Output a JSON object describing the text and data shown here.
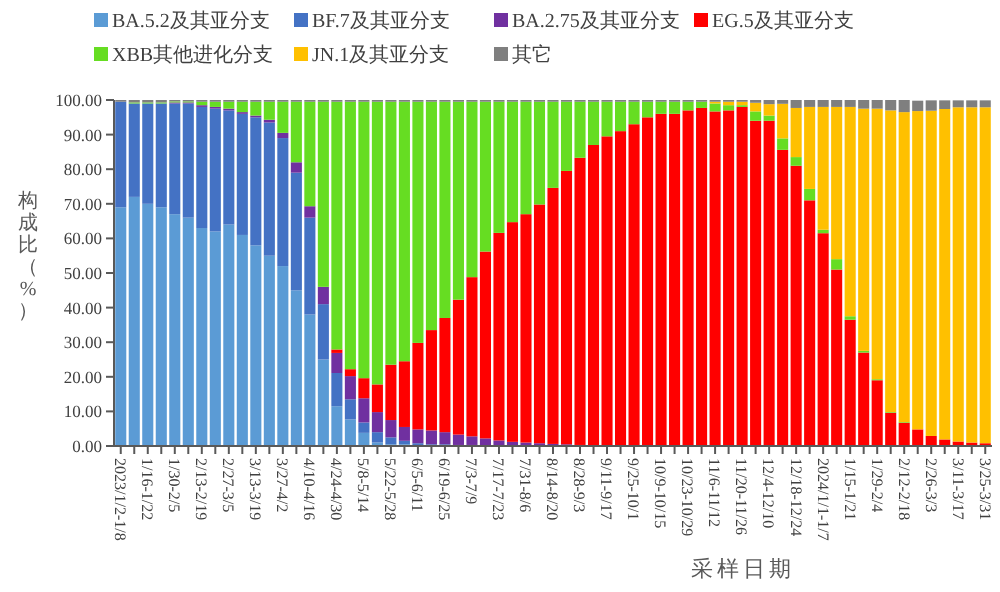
{
  "chart_data": {
    "type": "bar",
    "stacked": true,
    "xlabel": "采样日期",
    "ylabel": "构成比（%）",
    "legend": "top",
    "grid": false,
    "categories": [
      "2023/1/2-1/8",
      null,
      "1/16-1/22",
      null,
      "1/30-2/5",
      null,
      "2/13-2/19",
      null,
      "2/27-3/5",
      null,
      "3/13-3/19",
      null,
      "3/27-4/2",
      null,
      "4/10-4/16",
      null,
      "4/24-4/30",
      null,
      "5/8-5/14",
      null,
      "5/22-5/28",
      null,
      "6/5-6/11",
      null,
      "6/19-6/25",
      null,
      "7/3-7/9",
      null,
      "7/17-7/23",
      null,
      "7/31-8/6",
      null,
      "8/14-8/20",
      null,
      "8/28-9/3",
      null,
      "9/11-9/17",
      null,
      "9/25-10/1",
      null,
      "10/9-10/15",
      null,
      "10/23-10/29",
      null,
      "11/6-11/12",
      null,
      "11/20-11/26",
      null,
      "12/4-12/10",
      null,
      "12/18-12/24",
      null,
      "2024/1/1-1/7",
      null,
      "1/15-1/21",
      null,
      "1/29-2/4",
      null,
      "2/12-2/18",
      null,
      "2/26-3/3",
      null,
      "3/11-3/17",
      null,
      "3/25-3/31"
    ],
    "ylim": [
      0,
      100
    ],
    "yticks": [
      {
        "value": 0,
        "label": "0.00"
      },
      {
        "value": 10,
        "label": "10.00"
      },
      {
        "value": 20,
        "label": "20.00"
      },
      {
        "value": 30,
        "label": "30.00"
      },
      {
        "value": 40,
        "label": "40.00"
      },
      {
        "value": 50,
        "label": "50.00"
      },
      {
        "value": 60,
        "label": "60.00"
      },
      {
        "value": 70,
        "label": "70.00"
      },
      {
        "value": 80,
        "label": "80.00"
      },
      {
        "value": 90,
        "label": "90.00"
      },
      {
        "value": 100,
        "label": "100.00"
      }
    ],
    "series": [
      {
        "name": "BA.5.2及其亚分支",
        "color": "#5b9bd5",
        "values": [
          69,
          72,
          70,
          69,
          67,
          66,
          63,
          62,
          64,
          61,
          58,
          55,
          52,
          45,
          38,
          25,
          11.5,
          7.7,
          3.8,
          1,
          0.5,
          0.5,
          0.3,
          0.2,
          0.2,
          0.1,
          0.1,
          0.1,
          0,
          0,
          0,
          0,
          0,
          0,
          0,
          0,
          0,
          0,
          0,
          0,
          0,
          0,
          0,
          0,
          0,
          0,
          0,
          0,
          0,
          0,
          0,
          0,
          0,
          0,
          0,
          0,
          0,
          0,
          0,
          0,
          0,
          0,
          0,
          0,
          0
        ]
      },
      {
        "name": "BF.7及其亚分支",
        "color": "#4472c4",
        "values": [
          30.5,
          27,
          29,
          30,
          32,
          33,
          35,
          35.5,
          33,
          35,
          37,
          38.5,
          37,
          34,
          28,
          16,
          9.6,
          5.8,
          3,
          3,
          2,
          1,
          0.5,
          0.3,
          0.3,
          0.2,
          0.2,
          0.1,
          0.1,
          0,
          0,
          0,
          0,
          0,
          0,
          0,
          0,
          0,
          0,
          0,
          0,
          0,
          0,
          0,
          0,
          0,
          0,
          0,
          0,
          0,
          0,
          0,
          0,
          0,
          0,
          0,
          0,
          0,
          0,
          0,
          0,
          0,
          0,
          0,
          0
        ]
      },
      {
        "name": "BA.2.75及其亚分支",
        "color": "#7030a0",
        "values": [
          0,
          0,
          0,
          0,
          0.3,
          0.3,
          0.5,
          0.5,
          0.5,
          0.5,
          0.5,
          0.8,
          1.5,
          3,
          3.3,
          5,
          5.8,
          6.7,
          7,
          5.8,
          5,
          4,
          4,
          4,
          3.5,
          3,
          2.5,
          2,
          1.5,
          1.2,
          1,
          0.8,
          0.6,
          0.5,
          0.3,
          0,
          0,
          0,
          0,
          0,
          0,
          0,
          0,
          0,
          0,
          0,
          0,
          0,
          0,
          0,
          0,
          0,
          0,
          0,
          0,
          0,
          0,
          0,
          0,
          0,
          0,
          0,
          0,
          0,
          0
        ]
      },
      {
        "name": "EG.5及其亚分支",
        "color": "#ff0000",
        "values": [
          0,
          0,
          0,
          0,
          0,
          0,
          0,
          0,
          0,
          0,
          0,
          0,
          0,
          0,
          0,
          0,
          1,
          2,
          5.8,
          8,
          16,
          19,
          25,
          29,
          33,
          39,
          46,
          54,
          60,
          63.5,
          66,
          69,
          74,
          79,
          83,
          87,
          89.5,
          91,
          93,
          95,
          96,
          96,
          97,
          97.7,
          96.7,
          97,
          98,
          94,
          94,
          85.6,
          81,
          71,
          61.5,
          51,
          36.5,
          27,
          19,
          9.6,
          6.7,
          4.8,
          2.9,
          1.9,
          1.3,
          1,
          0.8
        ]
      },
      {
        "name": "XBB其他进化分支",
        "color": "#66dd22",
        "values": [
          0,
          0.3,
          0.3,
          0.3,
          0.3,
          0.3,
          1,
          1.5,
          2,
          3,
          4,
          5.2,
          9,
          17.5,
          30.2,
          53.5,
          71.6,
          77.3,
          79.9,
          81.7,
          76,
          75,
          69.7,
          66,
          62.5,
          57.2,
          50.7,
          43.3,
          37.9,
          34.8,
          32.5,
          29.7,
          24.9,
          20,
          16.2,
          12.5,
          10,
          8.5,
          6.5,
          4.5,
          3.5,
          3.5,
          2.5,
          1.8,
          2.3,
          1.5,
          0.5,
          2.7,
          1.5,
          3.3,
          2.5,
          3.3,
          1,
          3,
          1,
          0.5,
          0.3,
          0.2,
          0.2,
          null,
          null,
          null,
          null,
          null,
          null
        ]
      },
      {
        "name": "JN.1及其亚分支",
        "color": "#ffc000",
        "values": [
          0,
          0,
          0,
          0,
          0,
          0,
          0,
          0,
          0,
          0,
          0,
          0,
          0,
          0,
          0,
          0,
          0,
          0,
          0,
          0,
          0,
          0,
          0,
          0,
          0,
          0,
          0,
          0,
          0,
          0,
          0,
          0,
          0,
          0,
          0,
          0,
          0,
          0,
          0,
          0,
          0,
          0,
          0,
          0,
          0.5,
          1,
          1,
          2.5,
          3.3,
          10,
          14.2,
          23.7,
          35.5,
          44,
          60.5,
          70,
          78.2,
          87.2,
          89.6,
          92,
          94,
          95.5,
          96.6,
          96.9,
          97.1
        ]
      },
      {
        "name": "其它",
        "color": "#7f7f7f",
        "values": [
          0.5,
          0.7,
          0.7,
          0.7,
          0.4,
          0.4,
          0.5,
          0.5,
          0.5,
          0.5,
          0.5,
          0.5,
          0.5,
          0.5,
          0.5,
          0.5,
          0.5,
          0.5,
          0.5,
          0.5,
          0.5,
          0.5,
          0.5,
          0.5,
          0.5,
          0.5,
          0.5,
          0.5,
          0.5,
          0.5,
          0.5,
          0.5,
          0.5,
          0.5,
          0.5,
          0.5,
          0.5,
          0.5,
          0.5,
          0.5,
          0.5,
          0.5,
          0.5,
          0.5,
          0.5,
          0.5,
          0.5,
          0.8,
          1.2,
          1.1,
          2.3,
          2,
          2,
          2,
          2,
          2.5,
          2.5,
          3,
          3.5,
          3,
          3,
          2.5,
          2,
          2,
          2
        ]
      }
    ]
  }
}
